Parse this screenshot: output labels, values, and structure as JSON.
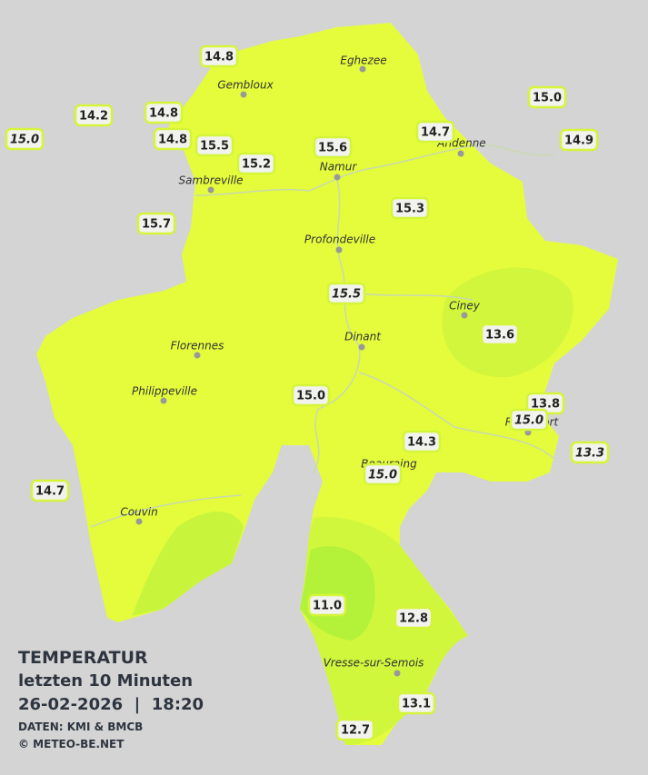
{
  "legend": {
    "title": "TEMPERATUR",
    "period": "letzten 10 Minuten",
    "datetime": "26-02-2026  |  18:20",
    "source": "DATEN: KMI & BMCB",
    "copyright": "© METEO-BE.NET"
  },
  "towns": [
    "Eghezee",
    "Gembloux",
    "Andenne",
    "Namur",
    "Sambreville",
    "Profondeville",
    "Ciney",
    "Dinant",
    "Florennes",
    "Philippeville",
    "Rochefort",
    "Beauraing",
    "Couvin",
    "Vresse-sur-Semois"
  ],
  "stations": [
    "14.8",
    "14.2",
    "14.8",
    "15.0",
    "14.8",
    "15.5",
    "15.2",
    "15.6",
    "14.7",
    "15.0",
    "14.9",
    "15.3",
    "15.7",
    "15.5",
    "13.6",
    "15.0",
    "13.8",
    "15.0",
    "14.3",
    "13.3",
    "15.0",
    "14.7",
    "11.0",
    "12.8",
    "13.1",
    "12.7"
  ]
}
